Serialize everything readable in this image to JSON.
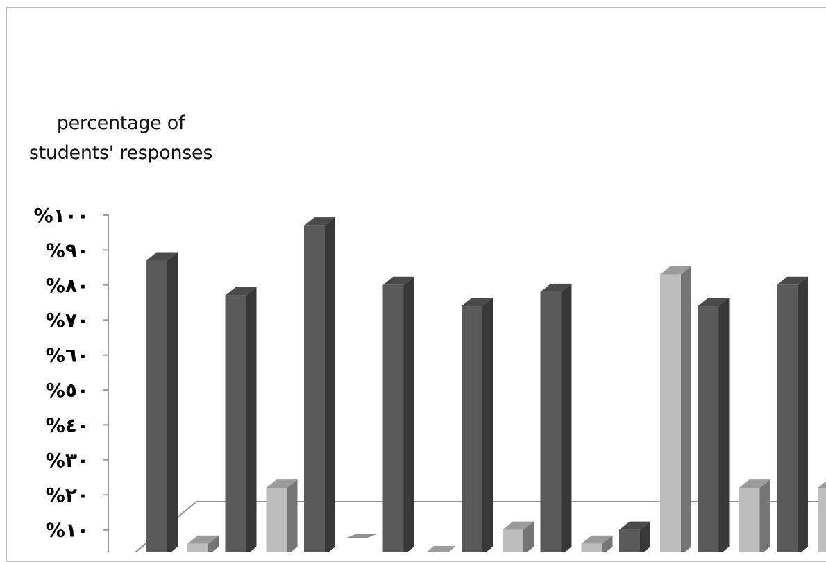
{
  "chart_data": {
    "type": "bar",
    "ylabel": [
      "percentage of",
      "students' responses"
    ],
    "ylim": [
      0,
      100
    ],
    "yticks": [
      "%١٠",
      "%٢٠",
      "%٣٠",
      "%٤٠",
      "%٥٠",
      "%٦٠",
      "%٧٠",
      "%٨٠",
      "%٩٠",
      "%١٠٠"
    ],
    "ytick_values": [
      10,
      20,
      30,
      40,
      50,
      60,
      70,
      80,
      90,
      100
    ],
    "grid": false,
    "three_d": true,
    "categories": [
      "",
      "",
      "",
      "",
      "",
      "",
      "",
      "",
      ""
    ],
    "series": [
      {
        "color": "#5a5a5a",
        "values": [
          87,
          77,
          97,
          80,
          74,
          78,
          10,
          74,
          80
        ]
      },
      {
        "color": "#bdbdbd",
        "values": [
          6,
          22,
          0,
          3,
          10,
          6,
          83,
          22,
          22
        ]
      }
    ]
  }
}
